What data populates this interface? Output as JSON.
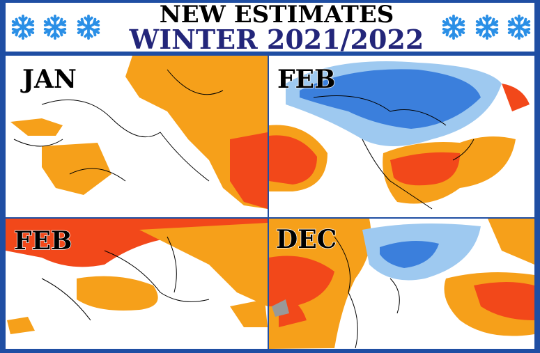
{
  "header": {
    "title": "NEW ESTIMATES",
    "subtitle": "WINTER 2021/2022"
  },
  "panels": [
    {
      "label": "JAN"
    },
    {
      "label": "FEB"
    },
    {
      "label": "FEB"
    },
    {
      "label": "DEC"
    }
  ]
}
